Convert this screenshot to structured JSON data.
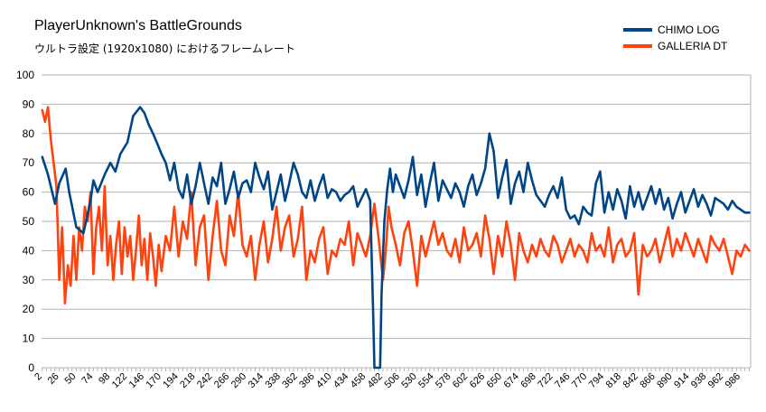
{
  "chart_data": {
    "type": "line",
    "title": "PlayerUnknown's BattleGrounds",
    "subtitle": "ウルトラ設定 (1920x1080) におけるフレームレート",
    "xlabel": "",
    "ylabel": "",
    "ylim": [
      0,
      100
    ],
    "yticks": [
      0,
      10,
      20,
      30,
      40,
      50,
      60,
      70,
      80,
      90,
      100
    ],
    "xlim": [
      1,
      1000
    ],
    "xticks": [
      2,
      26,
      50,
      74,
      98,
      122,
      146,
      170,
      194,
      218,
      242,
      266,
      290,
      314,
      338,
      362,
      386,
      410,
      434,
      458,
      482,
      506,
      530,
      554,
      578,
      602,
      626,
      650,
      674,
      698,
      722,
      746,
      770,
      794,
      818,
      842,
      866,
      890,
      914,
      938,
      962,
      986
    ],
    "grid": true,
    "legend_position": "top-right",
    "series": [
      {
        "name": "CHIMO LOG",
        "color": "#004586",
        "x": [
          2,
          10,
          20,
          26,
          35,
          40,
          50,
          60,
          70,
          74,
          80,
          90,
          98,
          105,
          112,
          122,
          130,
          140,
          146,
          152,
          158,
          165,
          170,
          176,
          182,
          188,
          194,
          200,
          206,
          212,
          218,
          224,
          230,
          236,
          242,
          248,
          254,
          260,
          266,
          272,
          278,
          284,
          290,
          296,
          302,
          308,
          314,
          320,
          326,
          332,
          338,
          344,
          350,
          356,
          362,
          368,
          374,
          380,
          386,
          392,
          398,
          404,
          410,
          416,
          422,
          428,
          434,
          440,
          446,
          452,
          458,
          464,
          468,
          470,
          474,
          478,
          480,
          484,
          488,
          492,
          496,
          500,
          506,
          512,
          518,
          524,
          530,
          536,
          542,
          548,
          554,
          560,
          566,
          572,
          578,
          584,
          590,
          596,
          602,
          608,
          614,
          620,
          626,
          632,
          638,
          644,
          650,
          656,
          662,
          668,
          674,
          680,
          686,
          692,
          698,
          704,
          710,
          716,
          722,
          728,
          734,
          740,
          746,
          752,
          758,
          764,
          770,
          776,
          782,
          788,
          794,
          800,
          806,
          812,
          818,
          824,
          830,
          836,
          842,
          848,
          854,
          860,
          866,
          872,
          878,
          884,
          890,
          896,
          902,
          908,
          914,
          920,
          926,
          932,
          938,
          944,
          950,
          956,
          962,
          968,
          974,
          980,
          986,
          992,
          998
        ],
        "values": [
          72,
          66,
          56,
          63,
          68,
          60,
          48,
          46,
          57,
          64,
          60,
          66,
          70,
          67,
          73,
          77,
          86,
          89,
          87,
          83,
          80,
          76,
          73,
          70,
          64,
          70,
          61,
          58,
          66,
          56,
          62,
          70,
          63,
          56,
          65,
          62,
          70,
          56,
          61,
          67,
          58,
          63,
          64,
          60,
          70,
          65,
          61,
          67,
          54,
          60,
          66,
          57,
          63,
          70,
          66,
          60,
          58,
          64,
          57,
          62,
          66,
          58,
          61,
          60,
          57,
          59,
          60,
          62,
          55,
          58,
          61,
          57,
          20,
          0,
          0,
          0,
          25,
          50,
          61,
          68,
          60,
          66,
          62,
          58,
          64,
          72,
          59,
          66,
          55,
          63,
          70,
          57,
          64,
          61,
          58,
          63,
          60,
          55,
          62,
          66,
          59,
          63,
          68,
          80,
          74,
          58,
          65,
          71,
          56,
          63,
          67,
          60,
          70,
          64,
          59,
          57,
          55,
          59,
          62,
          58,
          65,
          54,
          51,
          52,
          49,
          55,
          53,
          52,
          63,
          67,
          53,
          60,
          54,
          61,
          57,
          51,
          62,
          55,
          60,
          54,
          58,
          62,
          56,
          61,
          54,
          58,
          51,
          56,
          60,
          53,
          57,
          61,
          55,
          59,
          56,
          52,
          58,
          57,
          56,
          54,
          57,
          55,
          54,
          53,
          53
        ]
      },
      {
        "name": "GALLERIA DT",
        "color": "#ff420e",
        "x": [
          2,
          6,
          10,
          14,
          18,
          22,
          26,
          30,
          34,
          38,
          42,
          46,
          50,
          54,
          58,
          62,
          66,
          70,
          74,
          78,
          82,
          86,
          90,
          94,
          98,
          102,
          106,
          110,
          114,
          118,
          122,
          126,
          130,
          134,
          138,
          142,
          146,
          150,
          154,
          158,
          162,
          166,
          170,
          176,
          182,
          188,
          194,
          200,
          206,
          212,
          218,
          224,
          230,
          236,
          242,
          248,
          254,
          260,
          266,
          272,
          278,
          284,
          290,
          296,
          302,
          308,
          314,
          320,
          326,
          332,
          338,
          344,
          350,
          356,
          362,
          368,
          374,
          380,
          386,
          392,
          398,
          404,
          410,
          416,
          422,
          428,
          434,
          440,
          446,
          452,
          458,
          464,
          470,
          476,
          482,
          486,
          490,
          494,
          500,
          506,
          512,
          518,
          524,
          530,
          536,
          542,
          548,
          554,
          560,
          566,
          572,
          578,
          584,
          590,
          596,
          602,
          608,
          614,
          620,
          626,
          632,
          638,
          644,
          650,
          656,
          662,
          668,
          674,
          680,
          686,
          692,
          698,
          704,
          710,
          716,
          722,
          728,
          734,
          740,
          746,
          752,
          758,
          764,
          770,
          776,
          782,
          788,
          794,
          800,
          806,
          812,
          818,
          824,
          830,
          836,
          842,
          848,
          854,
          860,
          866,
          872,
          878,
          884,
          890,
          896,
          902,
          908,
          914,
          920,
          926,
          932,
          938,
          944,
          950,
          956,
          962,
          968,
          974,
          980,
          986,
          992,
          998
        ],
        "values": [
          88,
          84,
          89,
          78,
          70,
          62,
          30,
          48,
          22,
          35,
          28,
          45,
          30,
          48,
          40,
          55,
          50,
          60,
          32,
          48,
          55,
          40,
          62,
          35,
          45,
          30,
          42,
          50,
          32,
          48,
          38,
          45,
          30,
          40,
          52,
          35,
          44,
          30,
          46,
          38,
          28,
          42,
          33,
          45,
          40,
          55,
          38,
          50,
          44,
          60,
          35,
          48,
          52,
          30,
          45,
          57,
          40,
          35,
          52,
          45,
          60,
          42,
          38,
          45,
          30,
          42,
          50,
          36,
          44,
          55,
          40,
          48,
          52,
          38,
          44,
          55,
          30,
          40,
          36,
          44,
          48,
          32,
          40,
          38,
          44,
          42,
          50,
          35,
          46,
          42,
          38,
          45,
          56,
          44,
          30,
          40,
          55,
          48,
          42,
          35,
          46,
          50,
          40,
          28,
          45,
          38,
          44,
          50,
          42,
          46,
          40,
          38,
          44,
          36,
          48,
          40,
          42,
          46,
          38,
          52,
          44,
          32,
          45,
          38,
          50,
          42,
          30,
          46,
          40,
          36,
          42,
          38,
          44,
          40,
          38,
          45,
          42,
          36,
          40,
          44,
          38,
          42,
          40,
          36,
          46,
          40,
          42,
          38,
          48,
          36,
          42,
          44,
          38,
          40,
          46,
          25,
          42,
          38,
          40,
          44,
          36,
          42,
          48,
          38,
          44,
          40,
          46,
          42,
          38,
          44,
          40,
          36,
          45,
          42,
          40,
          44,
          38,
          32,
          40,
          38,
          42,
          40
        ]
      }
    ]
  }
}
